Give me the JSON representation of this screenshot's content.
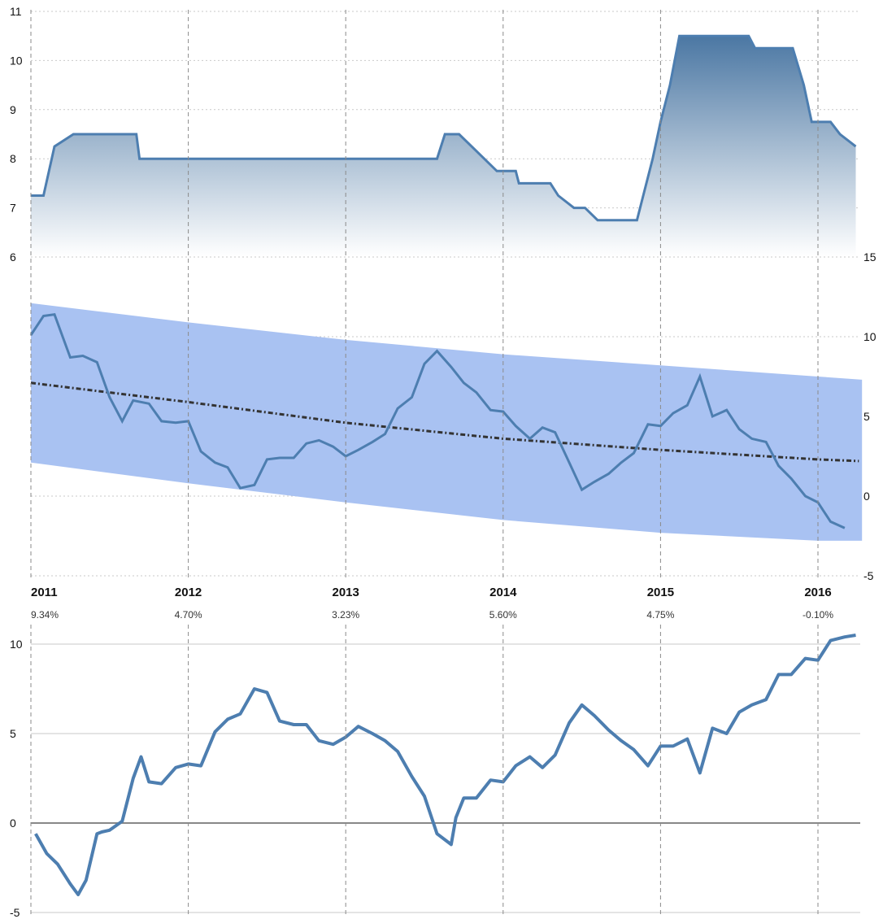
{
  "colors": {
    "line": "#4d7eb0",
    "area_top": "#4b77a3",
    "area_bottom": "#ffffff",
    "band": "#a9c2f2",
    "trend": "#333333",
    "grid": "#c9c9c9",
    "vline": "#8a8a8a",
    "zero_line": "#888888"
  },
  "chart_data": [
    {
      "type": "area",
      "ylim": [
        6,
        11
      ],
      "y_ticks": [
        "6",
        "7",
        "8",
        "9",
        "10",
        "11"
      ],
      "xlim": [
        2011,
        2016.28
      ],
      "grid": true,
      "series": [
        {
          "x": [
            2011,
            2011.08,
            2011.15,
            2011.27,
            2011.5,
            2011.67,
            2011.69,
            2012,
            2012.5,
            2013,
            2013.4,
            2013.58,
            2013.63,
            2013.72,
            2013.8,
            2013.88,
            2013.96,
            2014.08,
            2014.1,
            2014.3,
            2014.35,
            2014.45,
            2014.52,
            2014.6,
            2014.65,
            2014.85,
            2014.95,
            2015,
            2015.06,
            2015.12,
            2015.48,
            2015.56,
            2015.6,
            2015.84,
            2015.91,
            2015.96,
            2016.08,
            2016.14,
            2016.24
          ],
          "values": [
            7.25,
            7.25,
            8.25,
            8.5,
            8.5,
            8.5,
            8.0,
            8.0,
            8.0,
            8.0,
            8.0,
            8.0,
            8.5,
            8.5,
            8.25,
            8.0,
            7.75,
            7.75,
            7.5,
            7.5,
            7.25,
            7.0,
            7.0,
            6.75,
            6.75,
            6.75,
            8.0,
            8.75,
            9.5,
            10.5,
            10.5,
            10.5,
            10.25,
            10.25,
            9.5,
            8.75,
            8.75,
            8.5,
            8.25
          ]
        }
      ]
    },
    {
      "type": "line",
      "ylim": [
        -5,
        15
      ],
      "y_ticks": [
        "-5",
        "0",
        "5",
        "10",
        "15"
      ],
      "xlim": [
        2011,
        2016.28
      ],
      "x_ticks": [
        "2011",
        "2012",
        "2013",
        "2014",
        "2015",
        "2016"
      ],
      "annotations": [
        "9.34%",
        "4.70%",
        "3.23%",
        "5.60%",
        "4.75%",
        "-0.10%"
      ],
      "band": {
        "x": [
          2011,
          2012,
          2013,
          2014,
          2015,
          2016,
          2016.28
        ],
        "upper": [
          12.1,
          10.9,
          9.8,
          8.9,
          8.2,
          7.5,
          7.3
        ],
        "lower": [
          2.1,
          0.8,
          -0.4,
          -1.5,
          -2.3,
          -2.8,
          -2.8
        ]
      },
      "trend": {
        "x": [
          2011,
          2012,
          2013,
          2014,
          2015,
          2016,
          2016.26
        ],
        "values": [
          7.1,
          5.9,
          4.6,
          3.6,
          2.9,
          2.3,
          2.2
        ]
      },
      "series": [
        {
          "x": [
            2011,
            2011.08,
            2011.15,
            2011.25,
            2011.33,
            2011.42,
            2011.5,
            2011.58,
            2011.65,
            2011.75,
            2011.83,
            2011.92,
            2012,
            2012.08,
            2012.17,
            2012.25,
            2012.33,
            2012.42,
            2012.5,
            2012.58,
            2012.67,
            2012.75,
            2012.83,
            2012.92,
            2013,
            2013.08,
            2013.17,
            2013.25,
            2013.33,
            2013.42,
            2013.5,
            2013.58,
            2013.67,
            2013.75,
            2013.83,
            2013.92,
            2014,
            2014.08,
            2014.17,
            2014.25,
            2014.33,
            2014.42,
            2014.5,
            2014.58,
            2014.67,
            2014.75,
            2014.83,
            2014.92,
            2015,
            2015.08,
            2015.17,
            2015.25,
            2015.33,
            2015.42,
            2015.5,
            2015.58,
            2015.67,
            2015.75,
            2015.83,
            2015.92,
            2016,
            2016.08,
            2016.17
          ],
          "values": [
            10.1,
            11.3,
            11.4,
            8.7,
            8.8,
            8.4,
            6.2,
            4.7,
            6.0,
            5.8,
            4.7,
            4.6,
            4.7,
            2.8,
            2.1,
            1.8,
            0.5,
            0.7,
            2.3,
            2.4,
            2.4,
            3.3,
            3.5,
            3.1,
            2.5,
            2.9,
            3.4,
            3.9,
            5.5,
            6.2,
            8.3,
            9.1,
            8.1,
            7.1,
            6.5,
            5.4,
            5.3,
            4.4,
            3.6,
            4.3,
            4.0,
            2.1,
            0.4,
            0.9,
            1.4,
            2.1,
            2.7,
            4.5,
            4.4,
            5.2,
            5.7,
            7.5,
            5.0,
            5.4,
            4.2,
            3.6,
            3.4,
            1.9,
            1.1,
            0.0,
            -0.4,
            -1.6,
            -2.0
          ]
        }
      ]
    },
    {
      "type": "line",
      "ylim": [
        -5,
        10
      ],
      "y_ticks": [
        "-5",
        "0",
        "5",
        "10"
      ],
      "xlim": [
        2011,
        2016.28
      ],
      "series": [
        {
          "x": [
            2011.03,
            2011.1,
            2011.17,
            2011.25,
            2011.3,
            2011.35,
            2011.42,
            2011.45,
            2011.5,
            2011.58,
            2011.65,
            2011.7,
            2011.75,
            2011.83,
            2011.92,
            2012,
            2012.08,
            2012.17,
            2012.25,
            2012.33,
            2012.42,
            2012.5,
            2012.58,
            2012.67,
            2012.75,
            2012.83,
            2012.92,
            2013,
            2013.08,
            2013.17,
            2013.25,
            2013.33,
            2013.42,
            2013.5,
            2013.58,
            2013.67,
            2013.7,
            2013.75,
            2013.83,
            2013.92,
            2014,
            2014.08,
            2014.17,
            2014.25,
            2014.33,
            2014.42,
            2014.5,
            2014.58,
            2014.67,
            2014.75,
            2014.83,
            2014.92,
            2015,
            2015.08,
            2015.17,
            2015.25,
            2015.33,
            2015.42,
            2015.5,
            2015.58,
            2015.67,
            2015.75,
            2015.83,
            2015.92,
            2016,
            2016.08,
            2016.17,
            2016.24
          ],
          "values": [
            -0.6,
            -1.7,
            -2.3,
            -3.4,
            -4.0,
            -3.2,
            -0.6,
            -0.5,
            -0.4,
            0.1,
            2.5,
            3.7,
            2.3,
            2.2,
            3.1,
            3.3,
            3.2,
            5.1,
            5.8,
            6.1,
            7.5,
            7.3,
            5.7,
            5.5,
            5.5,
            4.6,
            4.4,
            4.8,
            5.4,
            5.0,
            4.6,
            4.0,
            2.6,
            1.5,
            -0.6,
            -1.2,
            0.3,
            1.4,
            1.4,
            2.4,
            2.3,
            3.2,
            3.7,
            3.1,
            3.8,
            5.6,
            6.6,
            6.0,
            5.2,
            4.6,
            4.1,
            3.2,
            4.3,
            4.3,
            4.7,
            2.8,
            5.3,
            5.0,
            6.2,
            6.6,
            6.9,
            8.3,
            8.3,
            9.2,
            9.1,
            10.2,
            10.4,
            10.5
          ]
        }
      ]
    }
  ]
}
